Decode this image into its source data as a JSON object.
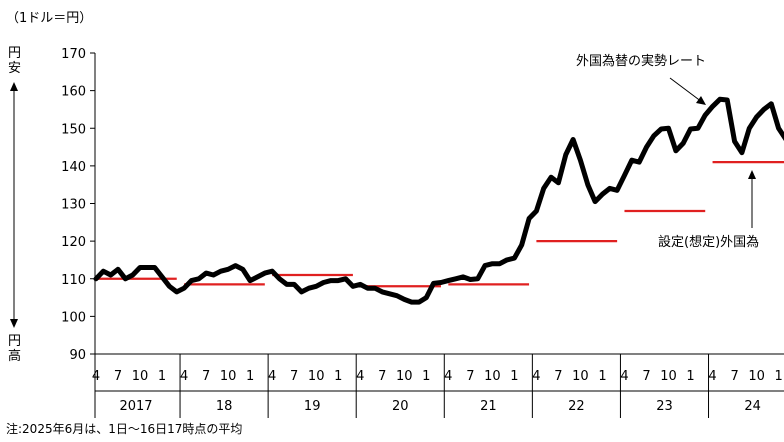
{
  "chart_data": {
    "type": "line",
    "unit_label": "（1ドル＝円）",
    "y_axis_top_label": "円安",
    "y_axis_bottom_label": "円高",
    "ylim": [
      90,
      170
    ],
    "y_ticks": [
      90,
      100,
      110,
      120,
      130,
      140,
      150,
      160,
      170
    ],
    "years": [
      "2017",
      "18",
      "19",
      "20",
      "21",
      "22",
      "23",
      "24"
    ],
    "month_ticks": [
      "4",
      "7",
      "10",
      "1"
    ],
    "grid": false,
    "annotations": {
      "actual": "外国為替の実勢レート",
      "assumed": "設定(想定)外国為"
    },
    "footnote": "注:2025年6月は、1日〜16日17時点の平均",
    "series": [
      {
        "name": "外国為替の実勢レート",
        "color": "#000000",
        "x": [
          0,
          1,
          2,
          3,
          4,
          5,
          6,
          7,
          8,
          9,
          10,
          11,
          12,
          13,
          14,
          15,
          16,
          17,
          18,
          19,
          20,
          21,
          22,
          23,
          24,
          25,
          26,
          27,
          28,
          29,
          30,
          31,
          32,
          33,
          34,
          35,
          36,
          37,
          38,
          39,
          40,
          41,
          42,
          43,
          44,
          45,
          46,
          47,
          48,
          49,
          50,
          51,
          52,
          53,
          54,
          55,
          56,
          57,
          58,
          59,
          60,
          61,
          62,
          63,
          64,
          65,
          66,
          67,
          68,
          69,
          70,
          71,
          72,
          73,
          74,
          75,
          76,
          77,
          78,
          79,
          80,
          81,
          82,
          83,
          84,
          85,
          86,
          87,
          88,
          89,
          90,
          91,
          92,
          93,
          94,
          95,
          96,
          97
        ],
        "values": [
          110,
          112,
          111,
          112.5,
          110,
          111,
          113,
          113,
          113,
          110.5,
          108,
          106.5,
          107.5,
          109.5,
          110,
          111.5,
          111,
          112,
          112.5,
          113.5,
          112.5,
          109.5,
          110.5,
          111.5,
          112,
          110,
          108.5,
          108.5,
          106.5,
          107.5,
          108,
          109,
          109.5,
          109.5,
          110,
          108,
          108.5,
          107.5,
          107.5,
          106.5,
          106,
          105.5,
          104.5,
          103.8,
          103.8,
          105,
          108.8,
          109,
          109.5,
          110,
          110.5,
          109.8,
          110,
          113.5,
          114,
          114,
          115,
          115.5,
          119,
          126,
          128,
          134,
          137,
          135.5,
          143,
          147,
          141.5,
          135,
          130.5,
          132.5,
          134,
          133.5,
          137.5,
          141.5,
          141,
          145,
          148,
          149.8,
          150,
          144,
          146,
          149.8,
          150,
          153.5,
          155.8,
          157.7,
          157.5,
          146.5,
          143.5,
          150,
          153,
          155,
          156.5,
          150,
          147,
          144.5,
          146,
          144.8
        ]
      }
    ],
    "assumed_rates": [
      {
        "year": "2017",
        "value": 110
      },
      {
        "year": "18",
        "value": 108.5
      },
      {
        "year": "19",
        "value": 111
      },
      {
        "year": "20",
        "value": 108
      },
      {
        "year": "21",
        "value": 108.5
      },
      {
        "year": "22",
        "value": 120
      },
      {
        "year": "23",
        "value": 128
      },
      {
        "year": "24",
        "value": 141
      }
    ]
  }
}
